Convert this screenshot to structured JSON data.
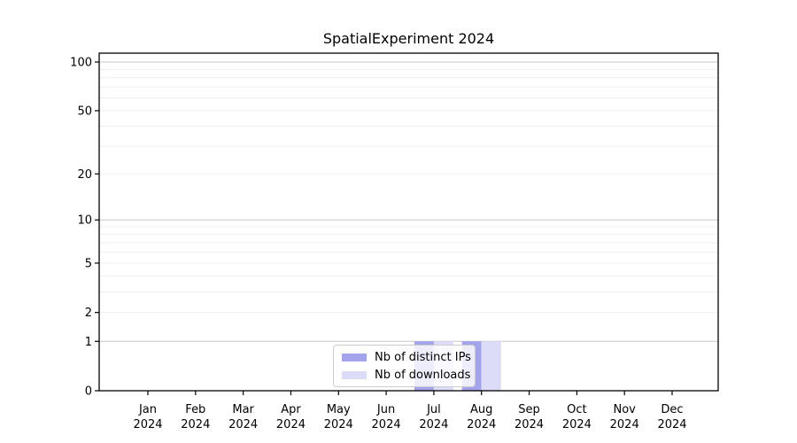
{
  "title": "SpatialExperiment 2024",
  "chart_data": {
    "type": "bar",
    "title": "SpatialExperiment 2024",
    "xlabel": "",
    "ylabel": "",
    "x": {
      "months": [
        "Jan",
        "Feb",
        "Mar",
        "Apr",
        "May",
        "Jun",
        "Jul",
        "Aug",
        "Sep",
        "Oct",
        "Nov",
        "Dec"
      ],
      "year": "2024"
    },
    "y": {
      "scale": "log10(value+1), 0 at baseline",
      "tick_values": [
        0,
        1,
        2,
        5,
        10,
        20,
        50,
        100
      ],
      "major_gridline_values": [
        1,
        10,
        100
      ],
      "minor_gridline_values": [
        2,
        3,
        4,
        5,
        6,
        7,
        8,
        9,
        20,
        30,
        40,
        50,
        60,
        70,
        80,
        90
      ],
      "ylim": [
        0,
        100
      ]
    },
    "series": [
      {
        "name": "Nb of distinct IPs",
        "color": "#a4a4ec",
        "values": [
          0,
          0,
          0,
          0,
          0,
          0,
          1,
          1,
          0,
          0,
          0,
          0
        ]
      },
      {
        "name": "Nb of downloads",
        "color": "#dcdcf8",
        "values": [
          0,
          0,
          0,
          0,
          0,
          0,
          1,
          1,
          0,
          0,
          0,
          0
        ]
      }
    ],
    "legend_position": "bottom-center",
    "grid": "horizontal only",
    "colors": {
      "spine": "#000000",
      "major_grid": "#c8c8c8",
      "minor_grid": "#efefef",
      "tick_label": "#000000"
    }
  }
}
